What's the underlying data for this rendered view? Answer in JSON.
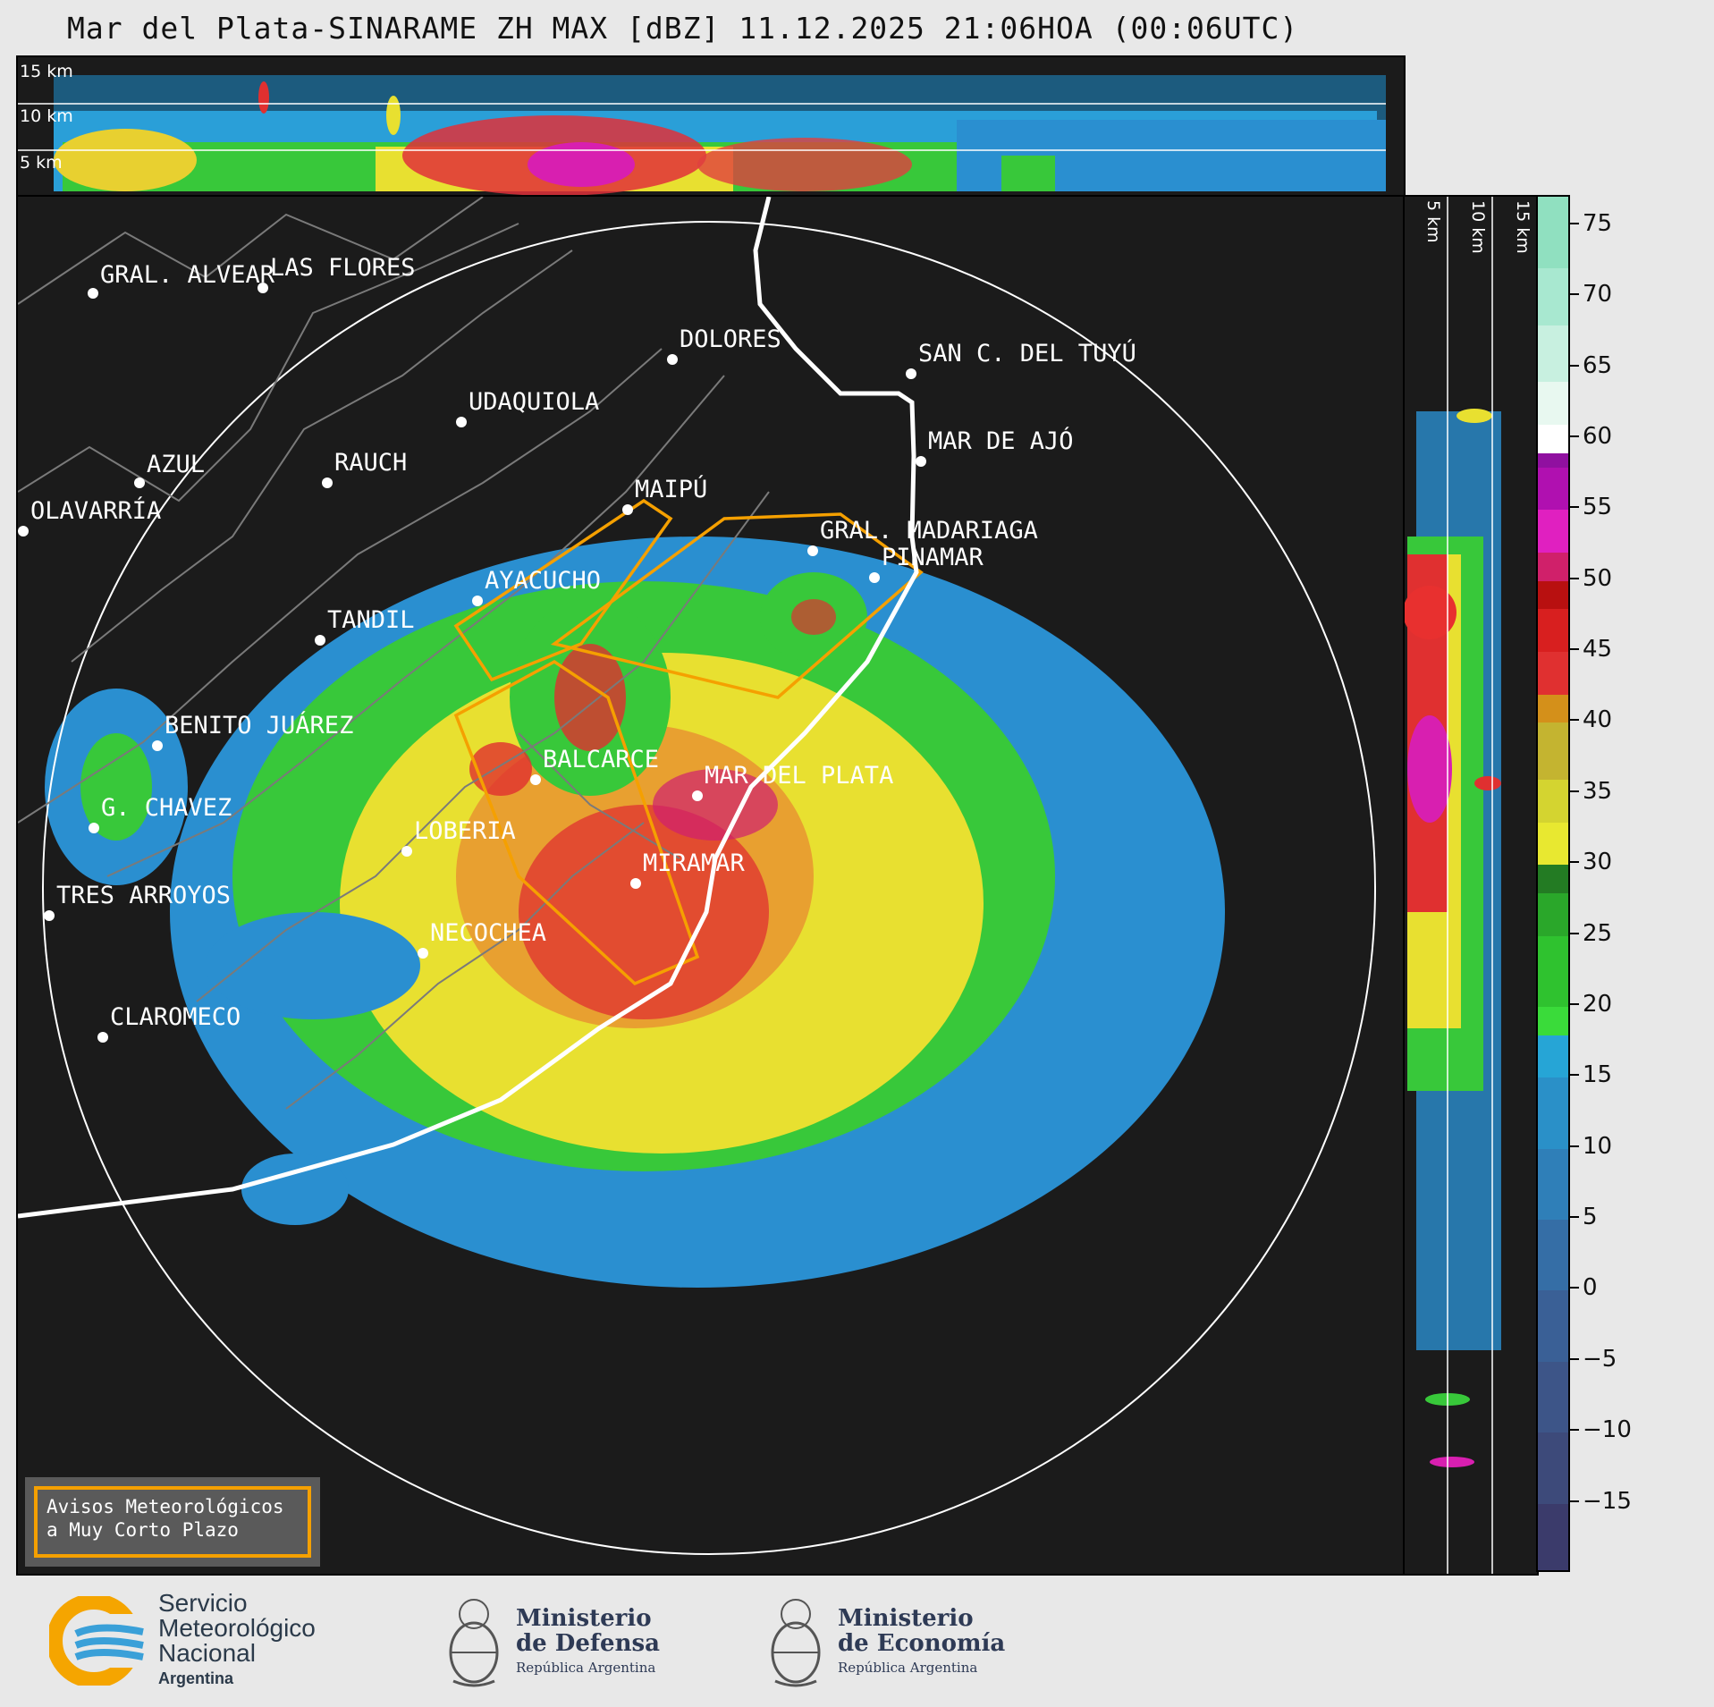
{
  "title": "Mar del Plata-SINARAME ZH MAX [dBZ] 11.12.2025 21:06HOA (00:06UTC)",
  "top_panel": {
    "height_labels": [
      "15 km",
      "10 km",
      "5 km"
    ]
  },
  "side_panel": {
    "height_labels": [
      "5 km",
      "10 km",
      "15 km"
    ]
  },
  "colorbar": {
    "ticks": [
      "75",
      "70",
      "65",
      "60",
      "55",
      "50",
      "45",
      "40",
      "35",
      "30",
      "25",
      "20",
      "15",
      "10",
      "5",
      "0",
      "−5",
      "−10",
      "−15"
    ],
    "range": [
      -20,
      77
    ]
  },
  "cities": [
    {
      "name": "GRAL. ALVEAR",
      "id": "gral-alvear"
    },
    {
      "name": "LAS FLORES",
      "id": "las-flores"
    },
    {
      "name": "DOLORES",
      "id": "dolores"
    },
    {
      "name": "SAN C. DEL TUYÚ",
      "id": "san-c-del-tuyu"
    },
    {
      "name": "UDAQUIOLA",
      "id": "udaquiola"
    },
    {
      "name": "MAR DE AJÓ",
      "id": "mar-de-ajo"
    },
    {
      "name": "AZUL",
      "id": "azul"
    },
    {
      "name": "RAUCH",
      "id": "rauch"
    },
    {
      "name": "MAIPÚ",
      "id": "maipu"
    },
    {
      "name": "OLAVARRÍA",
      "id": "olavarria"
    },
    {
      "name": "GRAL. MADARIAGA",
      "id": "gral-madariaga"
    },
    {
      "name": "PINAMAR",
      "id": "pinamar"
    },
    {
      "name": "AYACUCHO",
      "id": "ayacucho"
    },
    {
      "name": "TANDIL",
      "id": "tandil"
    },
    {
      "name": "BENITO JUÁREZ",
      "id": "benito-juarez"
    },
    {
      "name": "BALCARCE",
      "id": "balcarce"
    },
    {
      "name": "MAR DEL PLATA",
      "id": "mar-del-plata"
    },
    {
      "name": "G. CHAVEZ",
      "id": "g-chavez"
    },
    {
      "name": "LOBERIA",
      "id": "loberia"
    },
    {
      "name": "MIRAMAR",
      "id": "miramar"
    },
    {
      "name": "TRES ARROYOS",
      "id": "tres-arroyos"
    },
    {
      "name": "NECOCHEA",
      "id": "necochea"
    },
    {
      "name": "CLAROMECO",
      "id": "claromeco"
    }
  ],
  "legend": {
    "line1": "Avisos Meteorológicos",
    "line2": "a Muy Corto Plazo"
  },
  "footer": {
    "smn": {
      "line1": "Servicio",
      "line2": "Meteorológico",
      "line3": "Nacional",
      "line4": "Argentina"
    },
    "defensa": {
      "line1": "Ministerio",
      "line2": "de Defensa",
      "line3": "República Argentina"
    },
    "economia": {
      "line1": "Ministerio",
      "line2": "de Economía",
      "line3": "República Argentina"
    }
  },
  "colors": {
    "background": "#1b1b1b",
    "warning_polygon": "#f5a000",
    "coast": "#ffffff",
    "range_ring": "#ffffff"
  }
}
